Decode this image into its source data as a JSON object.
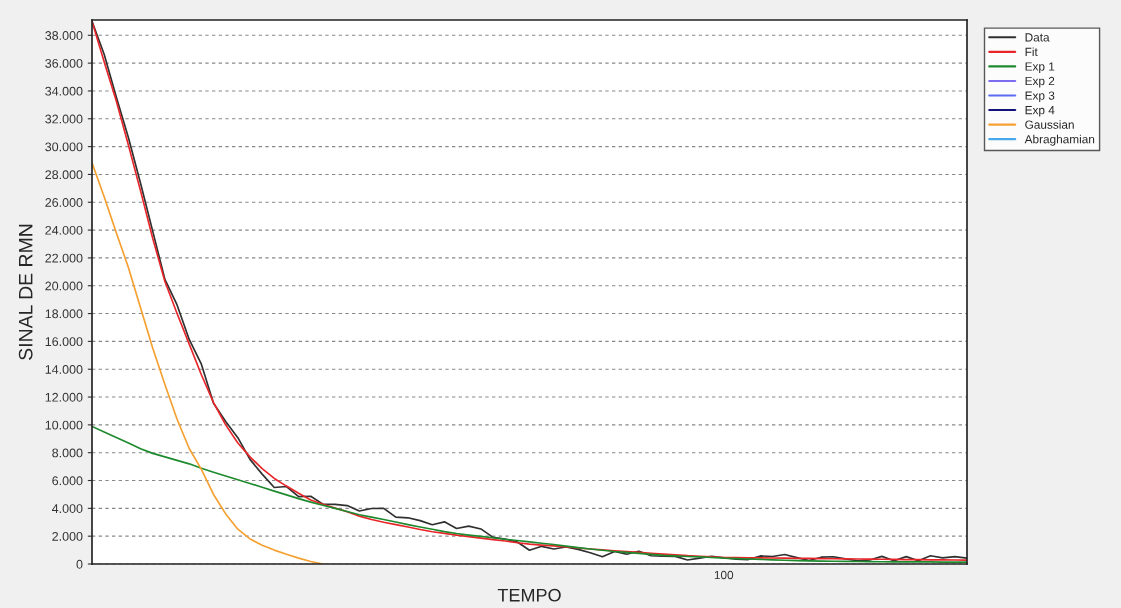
{
  "chart_data": {
    "type": "line",
    "xlabel": "TEMPO",
    "ylabel": "SINAL DE RMN",
    "categories": [
      null,
      null,
      null,
      null,
      null,
      null,
      null,
      null,
      null,
      null,
      null,
      null,
      null,
      null,
      null,
      null,
      null,
      null,
      null,
      null,
      null,
      null,
      null,
      null,
      null,
      null,
      null,
      null,
      null,
      null,
      null,
      null,
      null,
      null,
      null,
      null,
      null,
      null,
      null,
      null,
      null,
      null,
      null,
      null,
      null,
      null,
      null,
      null,
      null,
      null,
      null,
      null,
      null,
      null,
      null,
      null,
      null,
      null,
      null,
      null,
      null,
      null,
      null,
      null,
      null,
      null,
      null,
      null,
      null,
      null,
      null,
      null,
      null
    ],
    "ylim": [
      0,
      39100
    ],
    "yticks": [
      {
        "value": 0,
        "label": "0"
      },
      {
        "value": 2000,
        "label": "2.000"
      },
      {
        "value": 4000,
        "label": "4.000"
      },
      {
        "value": 6000,
        "label": "6.000"
      },
      {
        "value": 8000,
        "label": "8.000"
      },
      {
        "value": 10000,
        "label": "10.000"
      },
      {
        "value": 12000,
        "label": "12.000"
      },
      {
        "value": 14000,
        "label": "14.000"
      },
      {
        "value": 16000,
        "label": "16.000"
      },
      {
        "value": 18000,
        "label": "18.000"
      },
      {
        "value": 20000,
        "label": "20.000"
      },
      {
        "value": 22000,
        "label": "22.000"
      },
      {
        "value": 24000,
        "label": "24.000"
      },
      {
        "value": 26000,
        "label": "26.000"
      },
      {
        "value": 28000,
        "label": "28.000"
      },
      {
        "value": 30000,
        "label": "30.000"
      },
      {
        "value": 32000,
        "label": "32.000"
      },
      {
        "value": 34000,
        "label": "34.000"
      },
      {
        "value": 36000,
        "label": "36.000"
      },
      {
        "value": 38000,
        "label": "38.000"
      }
    ],
    "grid": "y",
    "legend": "top right",
    "line_style": "solid",
    "marker": "none",
    "annotations": [
      "100"
    ],
    "series": [
      {
        "name": "Data",
        "color": "#303030",
        "values": [
          39000,
          36640,
          33560,
          30640,
          27350,
          23910,
          20450,
          18620,
          16140,
          14360,
          11560,
          10240,
          9080,
          7520,
          6460,
          5500,
          5570,
          4840,
          4870,
          4300,
          4290,
          4200,
          3810,
          3990,
          4000,
          3370,
          3320,
          3120,
          2820,
          3030,
          2550,
          2720,
          2520,
          1910,
          1790,
          1580,
          990,
          1270,
          1080,
          1220,
          1050,
          810,
          520,
          900,
          700,
          920,
          590,
          570,
          550,
          290,
          420,
          560,
          450,
          350,
          320,
          580,
          540,
          680,
          460,
          250,
          490,
          520,
          370,
          230,
          290,
          550,
          230,
          530,
          230,
          590,
          440,
          530,
          420
        ]
      },
      {
        "name": "Fit",
        "color": "#e8262a",
        "values": [
          39000,
          36100,
          33280,
          30100,
          26800,
          23400,
          20300,
          18000,
          15800,
          13600,
          11600,
          10000,
          8700,
          7700,
          6850,
          6150,
          5600,
          5080,
          4600,
          4300,
          4020,
          3750,
          3440,
          3200,
          3000,
          2830,
          2660,
          2480,
          2320,
          2200,
          2080,
          1970,
          1860,
          1750,
          1650,
          1530,
          1430,
          1360,
          1300,
          1230,
          1150,
          1080,
          1010,
          950,
          890,
          830,
          770,
          710,
          660,
          600,
          560,
          510,
          470,
          460,
          450,
          440,
          430,
          420,
          410,
          400,
          390,
          380,
          370,
          360,
          350,
          340,
          330,
          320,
          310,
          300,
          300,
          290,
          280
        ]
      },
      {
        "name": "Exp 1",
        "color": "#1e8a2e",
        "values": [
          9890,
          9490,
          9100,
          8700,
          8290,
          7950,
          7700,
          7450,
          7200,
          6880,
          6600,
          6330,
          6060,
          5790,
          5520,
          5240,
          4970,
          4700,
          4450,
          4220,
          4000,
          3770,
          3540,
          3370,
          3200,
          3020,
          2830,
          2660,
          2500,
          2330,
          2190,
          2080,
          1980,
          1890,
          1780,
          1690,
          1590,
          1490,
          1400,
          1290,
          1180,
          1080,
          990,
          900,
          840,
          760,
          690,
          620,
          580,
          540,
          510,
          470,
          420,
          390,
          360,
          330,
          300,
          270,
          240,
          220,
          210,
          200,
          190,
          180,
          170,
          160,
          150,
          150,
          150,
          150,
          140,
          140,
          140
        ]
      },
      {
        "name": "Exp 2",
        "color": "#7b6cf0",
        "values": [
          null,
          null,
          null,
          null,
          null,
          null,
          null,
          null,
          null,
          null,
          null,
          null,
          null,
          null,
          null,
          null,
          null,
          null,
          null,
          null,
          null,
          null,
          null,
          null,
          null,
          null,
          null,
          null,
          null,
          null,
          null,
          null,
          null,
          null,
          null,
          null,
          null,
          null,
          null,
          null,
          null,
          null,
          null,
          null,
          null,
          null,
          null,
          null,
          null,
          null,
          null,
          null,
          null,
          null,
          null,
          null,
          null,
          null,
          null,
          null,
          null,
          null,
          null,
          null,
          null,
          null,
          null,
          null,
          null,
          null,
          null,
          null,
          null
        ]
      },
      {
        "name": "Exp 3",
        "color": "#5c6cf5",
        "values": [
          null,
          null,
          null,
          null,
          null,
          null,
          null,
          null,
          null,
          null,
          null,
          null,
          null,
          null,
          null,
          null,
          null,
          null,
          null,
          null,
          null,
          null,
          null,
          null,
          null,
          null,
          null,
          null,
          null,
          null,
          null,
          null,
          null,
          null,
          null,
          null,
          null,
          null,
          null,
          null,
          null,
          null,
          null,
          null,
          null,
          null,
          null,
          null,
          null,
          null,
          null,
          null,
          null,
          null,
          null,
          null,
          null,
          null,
          null,
          null,
          null,
          null,
          null,
          null,
          null,
          null,
          null,
          null,
          null,
          null,
          null,
          null,
          null
        ]
      },
      {
        "name": "Exp 4",
        "color": "#12127a",
        "values": [
          null,
          null,
          null,
          null,
          null,
          null,
          null,
          null,
          null,
          null,
          null,
          null,
          null,
          null,
          null,
          null,
          null,
          null,
          null,
          null,
          null,
          null,
          null,
          null,
          null,
          null,
          null,
          null,
          null,
          null,
          null,
          null,
          null,
          null,
          null,
          null,
          null,
          null,
          null,
          null,
          null,
          null,
          null,
          null,
          null,
          null,
          null,
          null,
          null,
          null,
          null,
          null,
          null,
          null,
          null,
          null,
          null,
          null,
          null,
          null,
          null,
          null,
          null,
          null,
          null,
          null,
          null,
          null,
          null,
          null,
          null,
          null,
          null
        ]
      },
      {
        "name": "Gaussian",
        "color": "#f5a030",
        "values": [
          28830,
          26400,
          23810,
          21300,
          18400,
          15500,
          12900,
          10400,
          8300,
          6800,
          5000,
          3600,
          2500,
          1800,
          1350,
          1000,
          700,
          420,
          180,
          0,
          null,
          null,
          null,
          null,
          null,
          null,
          null,
          null,
          null,
          null,
          null,
          null,
          null,
          null,
          null,
          null,
          null,
          null,
          null,
          null,
          null,
          null,
          null,
          null,
          null,
          null,
          null,
          null,
          null,
          null,
          null,
          null,
          null,
          null,
          null,
          null,
          null,
          null,
          null,
          null,
          null,
          null,
          null,
          null,
          null,
          null,
          null,
          null,
          null,
          null,
          null,
          null,
          null
        ]
      },
      {
        "name": "Abraghamian",
        "color": "#48a8e8",
        "values": [
          null,
          null,
          null,
          null,
          null,
          null,
          null,
          null,
          null,
          null,
          null,
          null,
          null,
          null,
          null,
          null,
          null,
          null,
          null,
          null,
          null,
          null,
          null,
          null,
          null,
          null,
          null,
          null,
          null,
          null,
          null,
          null,
          null,
          null,
          null,
          null,
          null,
          null,
          null,
          null,
          null,
          null,
          null,
          null,
          null,
          null,
          null,
          null,
          null,
          null,
          null,
          null,
          null,
          null,
          null,
          null,
          null,
          null,
          null,
          null,
          null,
          null,
          null,
          null,
          null,
          null,
          null,
          null,
          null,
          null,
          null,
          null,
          null
        ]
      }
    ]
  }
}
